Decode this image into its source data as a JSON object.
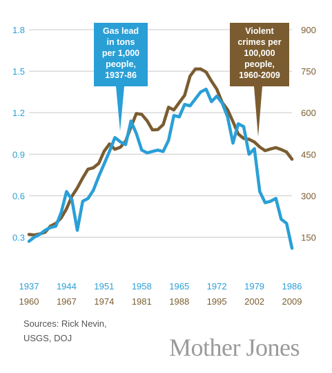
{
  "colors": {
    "lead": "#2a9fd6",
    "crime": "#7a5c30",
    "grid": "#c8c8c8"
  },
  "chart_data": {
    "type": "line",
    "grid": true,
    "y_left": {
      "ticks": [
        "0.3",
        "0.6",
        "0.9",
        "1.2",
        "1.5",
        "1.8"
      ],
      "range": [
        0,
        1.9
      ]
    },
    "y_right": {
      "ticks": [
        "150",
        "300",
        "450",
        "600",
        "750",
        "900"
      ],
      "range": [
        0,
        950
      ]
    },
    "x_top": {
      "ticks": [
        "1937",
        "1944",
        "1951",
        "1958",
        "1965",
        "1972",
        "1979",
        "1986"
      ],
      "range": [
        1937,
        1986
      ]
    },
    "x_bottom": {
      "ticks": [
        "1960",
        "1967",
        "1974",
        "1981",
        "1988",
        "1995",
        "2002",
        "2009"
      ],
      "range": [
        1960,
        2009
      ]
    },
    "series": [
      {
        "name": "Gas lead in tons per 1,000 people, 1937-86",
        "axis": "left",
        "callout": [
          "Gas lead",
          "in tons",
          "per 1,000",
          "people,",
          "1937-86"
        ],
        "x": [
          1937,
          1938,
          1939,
          1940,
          1941,
          1942,
          1943,
          1944,
          1945,
          1946,
          1947,
          1948,
          1949,
          1950,
          1951,
          1952,
          1953,
          1954,
          1955,
          1956,
          1957,
          1958,
          1959,
          1960,
          1961,
          1962,
          1963,
          1964,
          1965,
          1966,
          1967,
          1968,
          1969,
          1970,
          1971,
          1972,
          1973,
          1974,
          1975,
          1976,
          1977,
          1978,
          1979,
          1980,
          1981,
          1982,
          1983,
          1984,
          1985,
          1986
        ],
        "values": [
          0.27,
          0.3,
          0.32,
          0.35,
          0.37,
          0.38,
          0.48,
          0.63,
          0.57,
          0.35,
          0.56,
          0.58,
          0.64,
          0.74,
          0.83,
          0.92,
          1.02,
          0.99,
          0.97,
          1.14,
          1.05,
          0.93,
          0.91,
          0.92,
          0.93,
          0.92,
          1.0,
          1.18,
          1.17,
          1.26,
          1.25,
          1.3,
          1.35,
          1.37,
          1.28,
          1.32,
          1.27,
          1.17,
          0.98,
          1.12,
          1.1,
          0.9,
          0.94,
          0.63,
          0.55,
          0.56,
          0.58,
          0.43,
          0.4,
          0.22
        ]
      },
      {
        "name": "Violent crimes per 100,000 people, 1960-2009",
        "axis": "right",
        "callout": [
          "Violent",
          "crimes per",
          "100,000",
          "people,",
          "1960-2009"
        ],
        "x": [
          1960,
          1961,
          1962,
          1963,
          1964,
          1965,
          1966,
          1967,
          1968,
          1969,
          1970,
          1971,
          1972,
          1973,
          1974,
          1975,
          1976,
          1977,
          1978,
          1979,
          1980,
          1981,
          1982,
          1983,
          1984,
          1985,
          1986,
          1987,
          1988,
          1989,
          1990,
          1991,
          1992,
          1993,
          1994,
          1995,
          1996,
          1997,
          1998,
          1999,
          2000,
          2001,
          2002,
          2003,
          2004,
          2005,
          2006,
          2007,
          2008,
          2009
        ],
        "values": [
          160,
          158,
          162,
          168,
          190,
          200,
          220,
          253,
          298,
          328,
          364,
          396,
          401,
          417,
          461,
          487,
          468,
          475,
          497,
          548,
          597,
          594,
          571,
          538,
          539,
          557,
          620,
          610,
          637,
          663,
          732,
          758,
          758,
          747,
          714,
          685,
          637,
          611,
          568,
          523,
          507,
          504,
          494,
          476,
          463,
          469,
          474,
          467,
          458,
          432
        ]
      }
    ]
  },
  "sources": [
    "Sources: Rick Nevin,",
    "USGS, DOJ"
  ],
  "brand": "Mother Jones"
}
